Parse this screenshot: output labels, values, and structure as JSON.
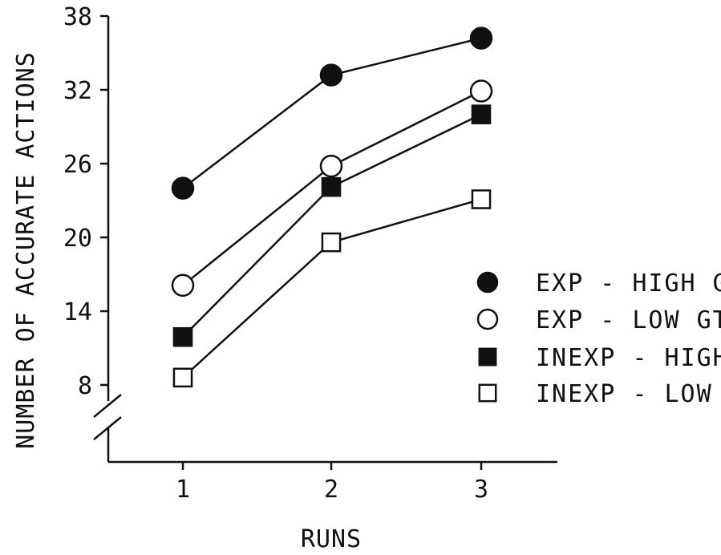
{
  "chart_data": {
    "type": "line",
    "title": "",
    "xlabel": "RUNS",
    "ylabel": "NUMBER OF ACCURATE ACTIONS",
    "x": [
      1,
      2,
      3
    ],
    "x_tick_labels": [
      "1",
      "2",
      "3"
    ],
    "y_ticks": [
      8,
      14,
      20,
      26,
      32,
      38
    ],
    "y_tick_labels": [
      "8",
      "14",
      "20",
      "26",
      "32",
      "38"
    ],
    "ylim": [
      2,
      38
    ],
    "y_axis_break": true,
    "grid": false,
    "legend_position": "right",
    "series": [
      {
        "name": "EXP - HIGH G",
        "values": [
          24.0,
          33.2,
          36.2
        ],
        "marker": "filled-circle"
      },
      {
        "name": "EXP - LOW GT",
        "values": [
          16.1,
          25.8,
          31.9
        ],
        "marker": "open-circle"
      },
      {
        "name": "INEXP - HIGH",
        "values": [
          11.9,
          24.1,
          30.0
        ],
        "marker": "filled-square"
      },
      {
        "name": "INEXP - LOW",
        "values": [
          8.6,
          19.6,
          23.1
        ],
        "marker": "open-square"
      }
    ],
    "colors": {
      "line": "#111111",
      "fill": "#111111",
      "background": "#ffffff"
    }
  }
}
